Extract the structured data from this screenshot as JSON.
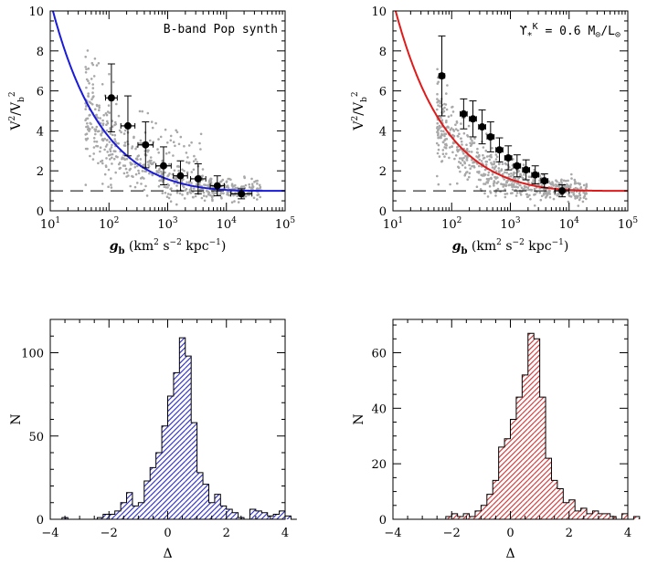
{
  "chart_data": [
    {
      "type": "scatter",
      "panel": "top-left",
      "annotation": "B-band Pop synth",
      "xlabel_parts": [
        "g",
        "b",
        " (km",
        "2",
        " s",
        "−2",
        " kpc",
        "−1",
        ")"
      ],
      "ylabel_parts": [
        "V",
        "2",
        "/V",
        "b",
        "2"
      ],
      "xscale": "log",
      "xlim": [
        10,
        100000
      ],
      "xticks": [
        {
          "v": 10,
          "b": "10",
          "e": "1"
        },
        {
          "v": 100,
          "b": "10",
          "e": "2"
        },
        {
          "v": 1000,
          "b": "10",
          "e": "3"
        },
        {
          "v": 10000,
          "b": "10",
          "e": "4"
        },
        {
          "v": 100000,
          "b": "10",
          "e": "5"
        }
      ],
      "ylim": [
        0,
        10
      ],
      "yticks": [
        0,
        2,
        4,
        6,
        8,
        10
      ],
      "curve_color": "#1a1adb",
      "curve": {
        "model": "1/(1-exp(-sqrt(x/a)))",
        "a": 1000
      },
      "reference_line": 1,
      "binned": {
        "x": [
          110,
          210,
          420,
          850,
          1650,
          3300,
          7000,
          18000
        ],
        "y": [
          5.65,
          4.25,
          3.3,
          2.25,
          1.75,
          1.6,
          1.25,
          0.85
        ],
        "yerr": [
          1.7,
          1.5,
          1.15,
          0.95,
          0.75,
          0.75,
          0.5,
          0.25
        ],
        "xerr_dex": [
          0.1,
          0.12,
          0.13,
          0.13,
          0.12,
          0.13,
          0.12,
          0.18
        ]
      }
    },
    {
      "type": "scatter",
      "panel": "top-right",
      "annotation_parts": [
        "ϒ",
        "*",
        "K",
        " = 0.6 M",
        "⊙",
        "/L",
        "⊙"
      ],
      "xlabel_parts": [
        "g",
        "b",
        " (km",
        "2",
        " s",
        "−2",
        " kpc",
        "−1",
        ")"
      ],
      "ylabel_parts": [
        "V",
        "2",
        "/V",
        "b",
        "2"
      ],
      "xscale": "log",
      "xlim": [
        10,
        100000
      ],
      "xticks": [
        {
          "v": 10,
          "b": "10",
          "e": "1"
        },
        {
          "v": 100,
          "b": "10",
          "e": "2"
        },
        {
          "v": 1000,
          "b": "10",
          "e": "3"
        },
        {
          "v": 10000,
          "b": "10",
          "e": "4"
        },
        {
          "v": 100000,
          "b": "10",
          "e": "5"
        }
      ],
      "ylim": [
        0,
        10
      ],
      "yticks": [
        0,
        2,
        4,
        6,
        8,
        10
      ],
      "curve_color": "#e01a1a",
      "curve": {
        "model": "1/(1-exp(-sqrt(x/a)))",
        "a": 1000
      },
      "reference_line": 1,
      "binned": {
        "x": [
          68,
          160,
          230,
          330,
          460,
          650,
          920,
          1300,
          1850,
          2650,
          3800,
          7600
        ],
        "y": [
          6.75,
          4.85,
          4.6,
          4.2,
          3.7,
          3.05,
          2.65,
          2.25,
          2.05,
          1.8,
          1.5,
          1.0
        ],
        "yerr": [
          2.0,
          0.75,
          0.9,
          0.85,
          0.75,
          0.6,
          0.6,
          0.55,
          0.5,
          0.45,
          0.35,
          0.3
        ],
        "xerr_dex": [
          0.05,
          0.06,
          0.06,
          0.06,
          0.06,
          0.06,
          0.06,
          0.06,
          0.06,
          0.06,
          0.06,
          0.12
        ]
      }
    },
    {
      "type": "histogram",
      "panel": "bottom-left",
      "xlabel": "Δ",
      "ylabel": "N",
      "xlim": [
        -4,
        4
      ],
      "ylim": [
        0,
        120
      ],
      "xticks": [
        -4,
        -2,
        0,
        2,
        4
      ],
      "yticks": [
        0,
        50,
        100
      ],
      "color": "#2828c8",
      "bin_start": -3.6,
      "bin_width": 0.2,
      "counts": [
        1,
        0,
        0,
        0,
        0,
        0,
        1,
        3,
        3,
        5,
        10,
        16,
        8,
        10,
        23,
        31,
        40,
        56,
        74,
        88,
        109,
        98,
        58,
        28,
        21,
        10,
        15,
        8,
        6,
        4,
        1,
        0,
        6,
        5,
        4,
        2,
        3,
        5,
        2,
        0
      ]
    },
    {
      "type": "histogram",
      "panel": "bottom-right",
      "xlabel": "Δ",
      "ylabel": "N",
      "xlim": [
        -4,
        4
      ],
      "ylim": [
        0,
        72
      ],
      "xticks": [
        -4,
        -2,
        0,
        2,
        4
      ],
      "yticks": [
        0,
        20,
        40,
        60
      ],
      "color": "#d03030",
      "bin_start": -3.6,
      "bin_width": 0.2,
      "counts": [
        0,
        0,
        0,
        0,
        0,
        0,
        0,
        1,
        2,
        1,
        2,
        1,
        3,
        5,
        9,
        14,
        26,
        29,
        36,
        44,
        52,
        67,
        65,
        44,
        22,
        14,
        11,
        6,
        7,
        3,
        4,
        2,
        3,
        2,
        2,
        1,
        0,
        2,
        0,
        1
      ]
    }
  ]
}
